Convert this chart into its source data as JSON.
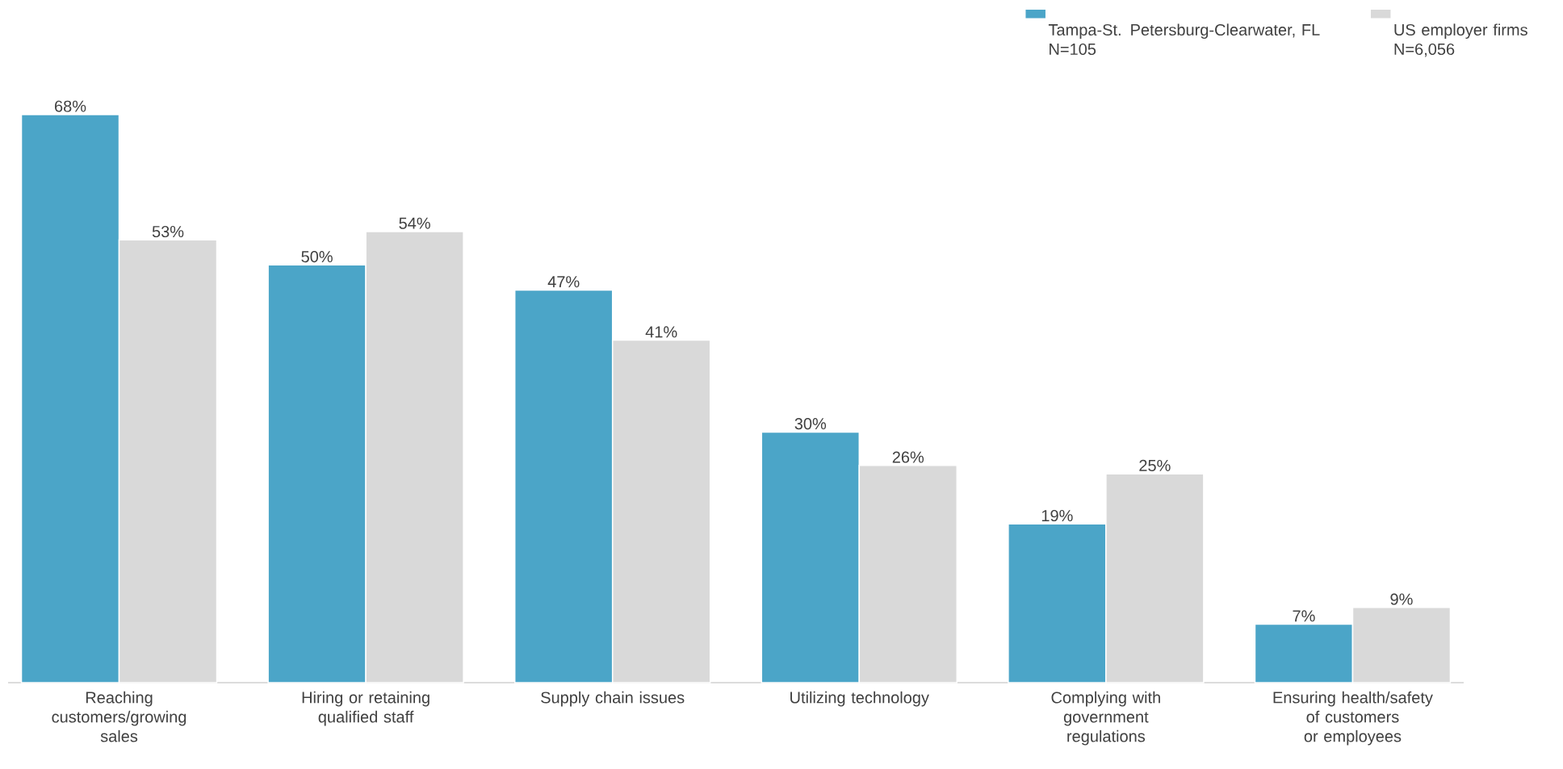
{
  "chart_data": {
    "type": "bar",
    "categories": [
      "Reaching customers/growing sales",
      "Hiring or retaining qualified staff",
      "Supply chain issues",
      "Utilizing technology",
      "Complying with government regulations",
      "Ensuring health/safety of customers or employees"
    ],
    "series": [
      {
        "name": "Tampa-St. Petersburg-Clearwater, FL N=105",
        "color": "#4ba5c8",
        "values": [
          68,
          50,
          47,
          30,
          19,
          7
        ],
        "value_labels": [
          "68%",
          "50%",
          "47%",
          "30%",
          "19%",
          "7%"
        ]
      },
      {
        "name": "US employer firms N=6,056",
        "color": "#d9d9d9",
        "values": [
          53,
          54,
          41,
          26,
          25,
          9
        ],
        "value_labels": [
          "53%",
          "54%",
          "41%",
          "26%",
          "25%",
          "9%"
        ]
      }
    ],
    "legend": "top right"
  }
}
